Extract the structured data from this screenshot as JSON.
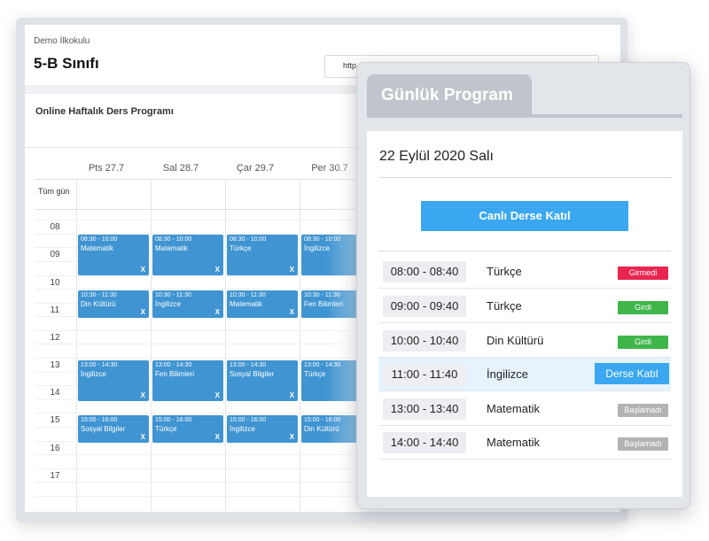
{
  "back": {
    "school": "Demo İlkokulu",
    "class_name": "5-B Sınıfı",
    "url_text": "http",
    "card_title": "Online Haftalık Ders Programı",
    "allday_label": "Tüm gün",
    "days": [
      "Pts 27.7",
      "Sal 28.7",
      "Çar 29.7",
      "Per 30.7"
    ],
    "hours": [
      "08",
      "09",
      "10",
      "11",
      "12",
      "13",
      "14",
      "15",
      "16",
      "17"
    ],
    "close_mark": "X",
    "events": [
      {
        "time": "08:30 - 10:00",
        "subject": "Matematik"
      },
      {
        "time": "08:30 - 10:00",
        "subject": "Matematik"
      },
      {
        "time": "08:30 - 10:00",
        "subject": "Türkçe"
      },
      {
        "time": "08:30 - 10:00",
        "subject": "İngilizce"
      },
      {
        "time": "10:30 - 11:30",
        "subject": "Din Kültürü"
      },
      {
        "time": "10:30 - 11:30",
        "subject": "İngilizce"
      },
      {
        "time": "10:30 - 11:30",
        "subject": "Matematik"
      },
      {
        "time": "10:30 - 11:30",
        "subject": "Fen Bilimleri"
      },
      {
        "time": "13:00 - 14:30",
        "subject": "İngilizce"
      },
      {
        "time": "13:00 - 14:30",
        "subject": "Fen Bilimleri"
      },
      {
        "time": "13:00 - 14:30",
        "subject": "Sosyal Bilgiler"
      },
      {
        "time": "13:00 - 14:30",
        "subject": "Türkçe"
      },
      {
        "time": "15:00 - 16:00",
        "subject": "Sosyal Bilgiler"
      },
      {
        "time": "15:00 - 16:00",
        "subject": "Türkçe"
      },
      {
        "time": "15:00 - 16:00",
        "subject": "İngilizce"
      },
      {
        "time": "15:00 - 16:00",
        "subject": "Din Kültürü"
      }
    ]
  },
  "front": {
    "tab_label": "Günlük Program",
    "date": "22 Eylül 2020 Salı",
    "join_main_label": "Canlı Derse Katıl",
    "rows": [
      {
        "time": "08:00 - 08:40",
        "subject": "Türkçe",
        "status": "Girmedi"
      },
      {
        "time": "09:00 - 09:40",
        "subject": "Türkçe",
        "status": "Girdi"
      },
      {
        "time": "10:00 - 10:40",
        "subject": "Din Kültürü",
        "status": "Girdi"
      },
      {
        "time": "11:00 - 11:40",
        "subject": "İngilizce",
        "status": "Derse Katıl"
      },
      {
        "time": "13:00 - 13:40",
        "subject": "Matematik",
        "status": "Başlamadı"
      },
      {
        "time": "14:00 - 14:40",
        "subject": "Matematik",
        "status": "Başlamadı"
      }
    ]
  },
  "colors": {
    "accent": "#3aa7f0",
    "event_blue": "#3f94d1",
    "status_missed": "#e8264f",
    "status_attended": "#3fb54a",
    "status_pending": "#b3b3b3",
    "highlight_row": "#e6f2fc"
  }
}
